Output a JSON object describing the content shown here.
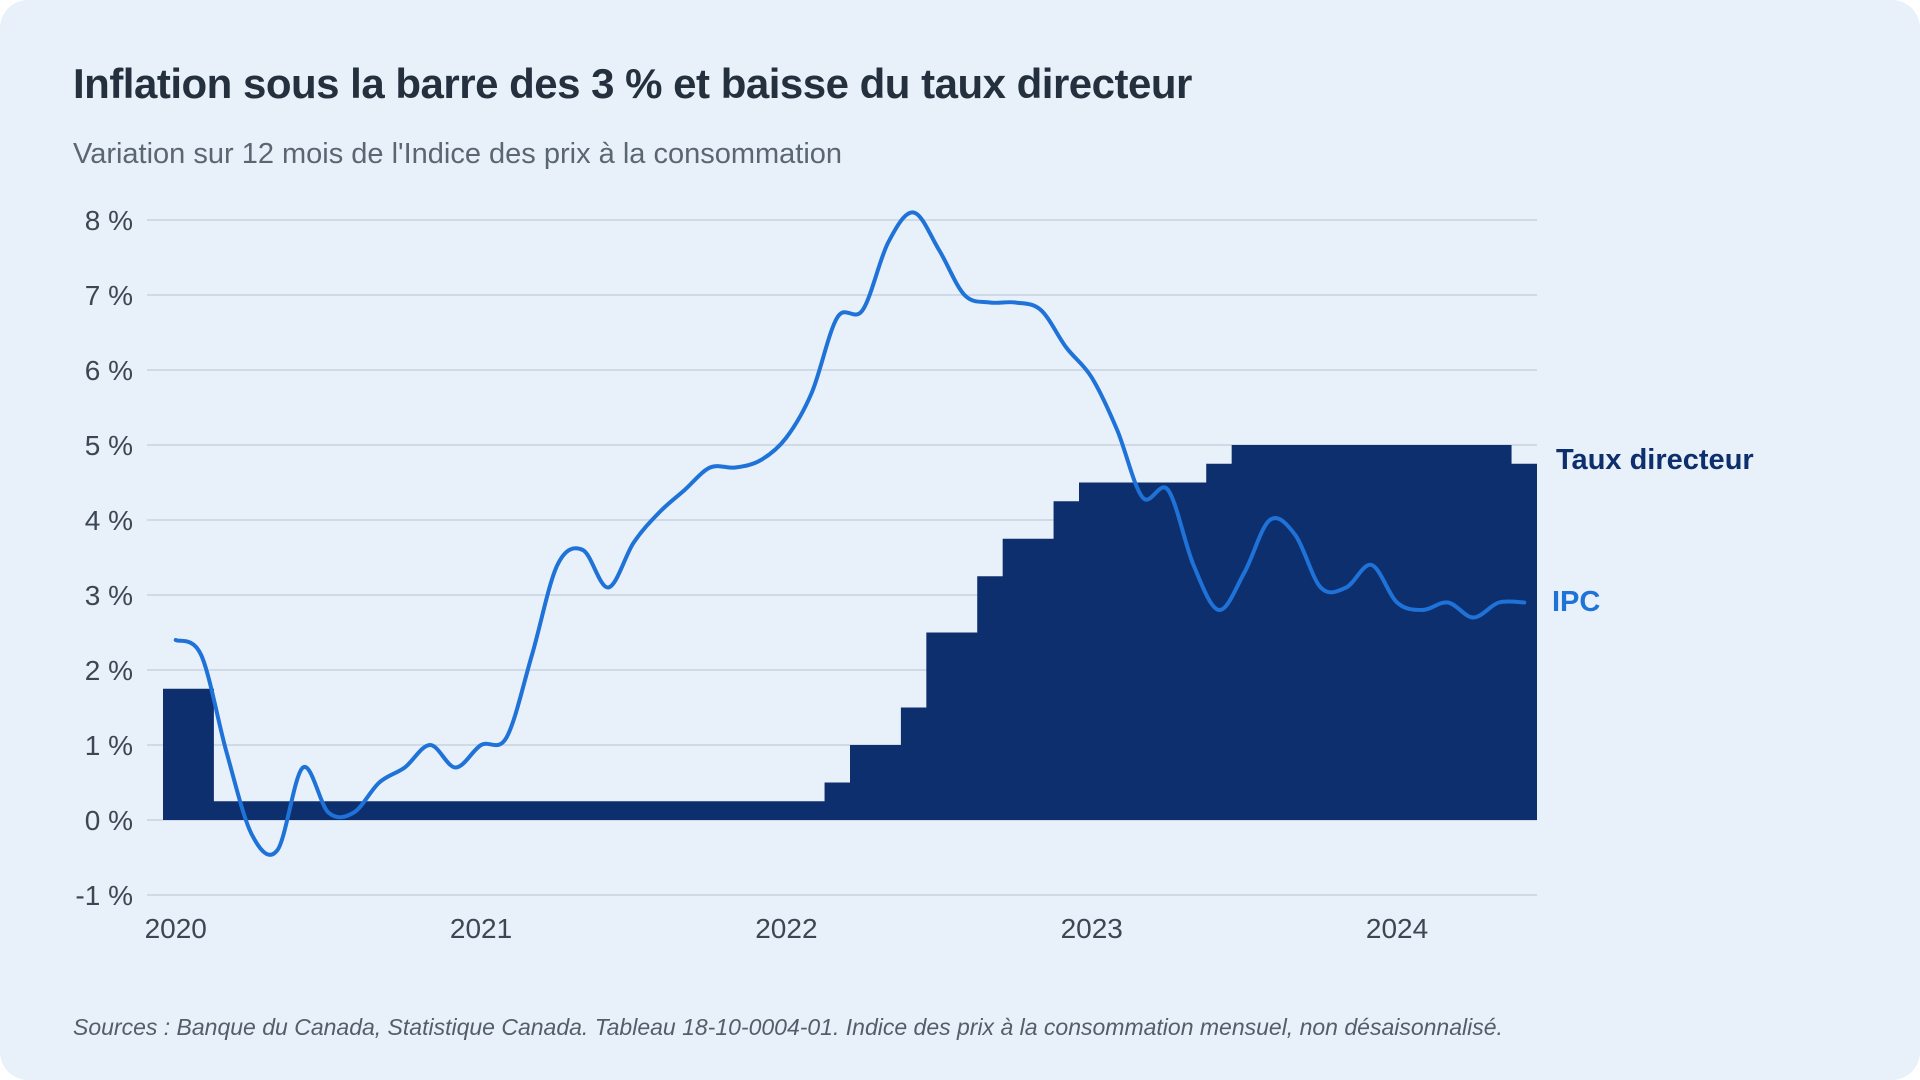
{
  "header": {
    "title": "Inflation sous la barre des 3 % et baisse du taux directeur",
    "subtitle": "Variation sur 12 mois de l'Indice des prix à la consommation"
  },
  "footer": {
    "source": "Sources : Banque du Canada, Statistique Canada. Tableau 18-10-0004-01. Indice des prix à la consommation mensuel, non désaisonnalisé."
  },
  "colors": {
    "background": "#e8f1f9",
    "policy_rate_fill": "#0e2f6e",
    "ipc_line": "#1e72d8",
    "gridline": "#c7d3df",
    "title_text": "#24303e",
    "subtitle_text": "#5b6673",
    "tick_text": "#3c4754",
    "source_text": "#535e6b"
  },
  "chart_data": {
    "type": "line",
    "title": "Inflation sous la barre des 3 % et baisse du taux directeur",
    "subtitle": "Variation sur 12 mois de l'Indice des prix à la consommation",
    "x_unit": "month",
    "x_start": "2020-01",
    "x_end": "2024-06",
    "ylim": [
      -1,
      8
    ],
    "grid": "horizontal",
    "legend_position": "right-of-lines",
    "y_ticks": [
      {
        "value": 8,
        "label": "8 %"
      },
      {
        "value": 7,
        "label": "7 %"
      },
      {
        "value": 6,
        "label": "6 %"
      },
      {
        "value": 5,
        "label": "5 %"
      },
      {
        "value": 4,
        "label": "4 %"
      },
      {
        "value": 3,
        "label": "3 %"
      },
      {
        "value": 2,
        "label": "2 %"
      },
      {
        "value": 1,
        "label": "1 %"
      },
      {
        "value": 0,
        "label": "0 %"
      },
      {
        "value": -1,
        "label": "-1 %"
      }
    ],
    "x_ticks": [
      {
        "month_index": 0,
        "label": "2020"
      },
      {
        "month_index": 12,
        "label": "2021"
      },
      {
        "month_index": 24,
        "label": "2022"
      },
      {
        "month_index": 36,
        "label": "2023"
      },
      {
        "month_index": 48,
        "label": "2024"
      }
    ],
    "series": [
      {
        "name": "Taux directeur",
        "type": "step_area",
        "color": "#0e2f6e",
        "values": [
          1.75,
          1.75,
          0.25,
          0.25,
          0.25,
          0.25,
          0.25,
          0.25,
          0.25,
          0.25,
          0.25,
          0.25,
          0.25,
          0.25,
          0.25,
          0.25,
          0.25,
          0.25,
          0.25,
          0.25,
          0.25,
          0.25,
          0.25,
          0.25,
          0.25,
          0.25,
          0.5,
          1.0,
          1.0,
          1.5,
          2.5,
          2.5,
          3.25,
          3.75,
          3.75,
          4.25,
          4.5,
          4.5,
          4.5,
          4.5,
          4.5,
          4.75,
          5.0,
          5.0,
          5.0,
          5.0,
          5.0,
          5.0,
          5.0,
          5.0,
          5.0,
          5.0,
          5.0,
          4.75
        ]
      },
      {
        "name": "IPC",
        "type": "smooth_line",
        "color": "#1e72d8",
        "values": [
          2.4,
          2.2,
          0.9,
          -0.2,
          -0.4,
          0.7,
          0.1,
          0.1,
          0.5,
          0.7,
          1.0,
          0.7,
          1.0,
          1.1,
          2.2,
          3.4,
          3.6,
          3.1,
          3.7,
          4.1,
          4.4,
          4.7,
          4.7,
          4.8,
          5.1,
          5.7,
          6.7,
          6.8,
          7.7,
          8.1,
          7.6,
          7.0,
          6.9,
          6.9,
          6.8,
          6.3,
          5.9,
          5.2,
          4.3,
          4.4,
          3.4,
          2.8,
          3.3,
          4.0,
          3.8,
          3.1,
          3.1,
          3.4,
          2.9,
          2.8,
          2.9,
          2.7,
          2.9,
          2.9
        ]
      }
    ]
  }
}
